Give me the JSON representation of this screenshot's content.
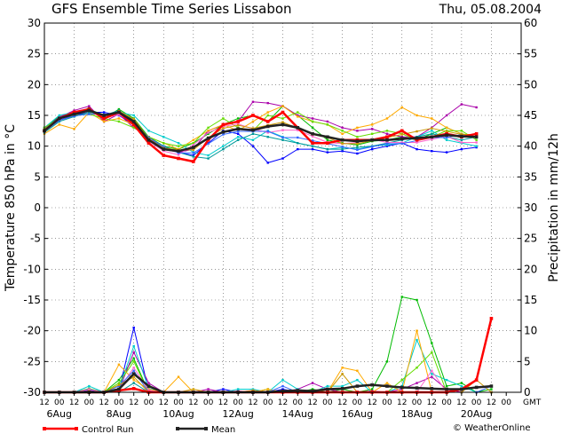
{
  "chart_data": {
    "type": "line",
    "title": "GFS Ensemble Time Series Lissabon",
    "date": "Thu, 05.08.2004",
    "ylabel_left": "Temperature 850 hPa in °C",
    "ylabel_right": "Precipitation in mm/12h",
    "ylim_left": [
      -30,
      30
    ],
    "ylim_right": [
      0,
      60
    ],
    "yticks_left": [
      "30",
      "25",
      "20",
      "15",
      "10",
      "5",
      "0",
      "-5",
      "-10",
      "-15",
      "-20",
      "-25",
      "-30"
    ],
    "yticks_right": [
      "60",
      "55",
      "50",
      "45",
      "40",
      "35",
      "30",
      "25",
      "20",
      "15",
      "10",
      "5",
      "0"
    ],
    "x_hour_labels": [
      "12",
      "00",
      "12",
      "00",
      "12",
      "00",
      "12",
      "00",
      "12",
      "00",
      "12",
      "00",
      "12",
      "00",
      "12",
      "00",
      "12",
      "00",
      "12",
      "00",
      "12",
      "00",
      "12",
      "00",
      "12",
      "00",
      "12",
      "00",
      "12",
      "00",
      "12",
      "00"
    ],
    "x_gmt_label": "GMT",
    "x_date_labels": [
      {
        "label": "6Aug",
        "step": 1
      },
      {
        "label": "8Aug",
        "step": 5
      },
      {
        "label": "10Aug",
        "step": 9
      },
      {
        "label": "12Aug",
        "step": 13
      },
      {
        "label": "14Aug",
        "step": 17
      },
      {
        "label": "16Aug",
        "step": 21
      },
      {
        "label": "18Aug",
        "step": 25
      },
      {
        "label": "20Aug",
        "step": 29
      }
    ],
    "grid": true,
    "legend": [
      {
        "name": "Control Run",
        "color": "#ff0000"
      },
      {
        "name": "Mean",
        "color": "#222222"
      }
    ],
    "credit": "© WeatherOnline",
    "temp_series": [
      {
        "name": "Control Run",
        "color": "#ff0000",
        "width": 2.5,
        "values": [
          12.5,
          14.5,
          15.5,
          16,
          14.5,
          15.5,
          13.5,
          10.5,
          8.5,
          8,
          7.5,
          11,
          13.5,
          14,
          15,
          14,
          15.5,
          13,
          10.5,
          10.5,
          11,
          11,
          11,
          11.5,
          12.5,
          11,
          11.5,
          12,
          11.5,
          12
        ]
      },
      {
        "name": "Mean",
        "color": "#222222",
        "width": 2.5,
        "values": [
          12.5,
          14.5,
          15.2,
          15.8,
          15,
          15.5,
          14,
          11,
          9.5,
          9.2,
          9.8,
          11.3,
          12.3,
          12.8,
          12.6,
          13.2,
          13.5,
          13,
          12,
          11.5,
          11,
          10.8,
          11,
          11,
          11.2,
          11.3,
          11.5,
          11.8,
          11.6,
          11.5
        ]
      },
      {
        "name": "",
        "color": "#00bb00",
        "width": 1,
        "values": [
          13,
          14.8,
          15.3,
          16.2,
          14.5,
          16,
          14.5,
          11.5,
          10,
          9.5,
          10.5,
          12,
          13.5,
          14.5,
          15,
          14,
          16.5,
          15,
          13,
          11,
          10.5,
          10.2,
          10.8,
          11,
          11.5,
          11,
          12,
          13,
          12,
          11.5
        ]
      },
      {
        "name": "",
        "color": "#0000ff",
        "width": 1,
        "values": [
          12.5,
          14.2,
          15,
          15.5,
          15.5,
          15,
          13.5,
          11,
          10,
          9,
          8.5,
          10.5,
          12.5,
          12,
          10,
          7.3,
          8,
          9.5,
          9.5,
          9,
          9.2,
          8.8,
          9.5,
          10,
          10.5,
          9.5,
          9.2,
          9,
          9.5,
          9.8
        ]
      },
      {
        "name": "",
        "color": "#aa00aa",
        "width": 1,
        "values": [
          12.8,
          14.7,
          15.8,
          16.5,
          14,
          15.2,
          13,
          11.5,
          9.5,
          9,
          9.5,
          12.5,
          13.5,
          14,
          17.2,
          17,
          16.5,
          15,
          14.5,
          14,
          13,
          12.5,
          12.8,
          12,
          11.5,
          11.5,
          13,
          15,
          16.8,
          16.3
        ]
      },
      {
        "name": "",
        "color": "#00cccc",
        "width": 1,
        "values": [
          13,
          15,
          15.5,
          16,
          15,
          15.5,
          15,
          12.5,
          11.5,
          10.5,
          9,
          8.5,
          10,
          11.5,
          11,
          12.5,
          11.5,
          10.5,
          10,
          9.5,
          9.8,
          9.5,
          10,
          10.2,
          10.5,
          11.5,
          12.5,
          11,
          10.5,
          10
        ]
      },
      {
        "name": "",
        "color": "#ffaa00",
        "width": 1,
        "values": [
          12,
          13.5,
          12.8,
          15.5,
          14,
          14.5,
          13.5,
          11.5,
          10.5,
          9.5,
          11,
          12.5,
          13.5,
          12.5,
          14,
          15.5,
          16.5,
          14.8,
          14,
          13.5,
          12,
          13,
          13.5,
          14.5,
          16.3,
          15,
          14.5,
          13,
          12,
          11.5
        ]
      },
      {
        "name": "",
        "color": "#66dd00",
        "width": 1,
        "values": [
          13,
          14.5,
          15,
          15.2,
          14.5,
          14,
          13,
          11.5,
          10.5,
          10,
          10.5,
          13,
          14.5,
          13,
          12.5,
          15,
          14.5,
          15.5,
          14,
          13.5,
          12.5,
          11.5,
          12,
          12.5,
          12,
          11,
          11.5,
          12.5,
          12.5,
          11
        ]
      },
      {
        "name": "",
        "color": "#009999",
        "width": 1,
        "values": [
          12.2,
          14,
          14.8,
          15.5,
          15,
          15.8,
          14.2,
          11,
          10,
          9,
          8.3,
          8,
          9.5,
          11,
          12,
          11.5,
          11,
          10.5,
          10,
          9.5,
          9.5,
          9.8,
          10,
          10.5,
          11,
          11.5,
          12,
          11.5,
          11,
          11.5
        ]
      },
      {
        "name": "",
        "color": "#ff66cc",
        "width": 1,
        "values": [
          12.6,
          14.4,
          15.1,
          15.9,
          14.6,
          15.1,
          13.8,
          10.8,
          9.2,
          8.6,
          10.2,
          12.2,
          13.2,
          13.6,
          12.8,
          12.2,
          12.6,
          12.6,
          11.6,
          10.6,
          10.4,
          10.6,
          11.1,
          10.6,
          10.6,
          10.6,
          11.1,
          11.6,
          10.6,
          10.6
        ]
      },
      {
        "name": "",
        "color": "#3366ff",
        "width": 1,
        "values": [
          12.4,
          14.2,
          14.9,
          15.2,
          15.2,
          15.4,
          13.9,
          11.4,
          9.9,
          8.9,
          8.9,
          10.4,
          11.9,
          12.4,
          12.4,
          12.4,
          11.4,
          11.4,
          10.9,
          10.4,
          9.9,
          9.4,
          9.9,
          10.4,
          10.4,
          10.9,
          11.4,
          11.4,
          11.9,
          11.4
        ]
      },
      {
        "name": "",
        "color": "#cc9900",
        "width": 1,
        "values": [
          12.7,
          14.6,
          15.4,
          16,
          14.4,
          15.7,
          14.4,
          11.2,
          9.7,
          9.4,
          9.4,
          11.4,
          12.9,
          13.4,
          12.9,
          13.4,
          13.9,
          12.9,
          11.9,
          11.4,
          10.4,
          10.4,
          10.9,
          11.4,
          11.9,
          12.4,
          12.9,
          12.4,
          11.9,
          11.9
        ]
      }
    ],
    "precip_series": [
      {
        "name": "Control Run",
        "color": "#ff0000",
        "width": 2.5,
        "values": [
          0,
          0,
          0,
          0,
          0,
          0.3,
          0.6,
          0,
          0,
          0,
          0,
          0,
          0,
          0,
          0,
          0,
          0,
          0,
          0,
          0,
          0,
          0,
          0,
          0,
          0,
          0,
          0,
          0,
          0.5,
          2,
          12
        ]
      },
      {
        "name": "Mean",
        "color": "#222222",
        "width": 2.5,
        "values": [
          0,
          0,
          0,
          0,
          0,
          0.5,
          3,
          1,
          0,
          0,
          0,
          0,
          0,
          0,
          0,
          0,
          0.2,
          0.3,
          0.2,
          0.5,
          0.6,
          1,
          1.2,
          1,
          0.8,
          0.7,
          0.6,
          0.5,
          0.5,
          0.8,
          1
        ]
      },
      {
        "name": "",
        "color": "#00bb00",
        "width": 1,
        "values": [
          0,
          0,
          0,
          0.6,
          0,
          2,
          5.5,
          0,
          0,
          0,
          0,
          0,
          0,
          0,
          0,
          0.5,
          0,
          0,
          0.5,
          0,
          0.5,
          0,
          0.5,
          5,
          15.5,
          15,
          8,
          1,
          1.5,
          0,
          0.5
        ]
      },
      {
        "name": "",
        "color": "#0000ff",
        "width": 1,
        "values": [
          0,
          0,
          0,
          0.3,
          0,
          0.2,
          10.5,
          0.2,
          0,
          0,
          0,
          0,
          0.5,
          0,
          0,
          0,
          0.5,
          0,
          0,
          0,
          0,
          0,
          0,
          0,
          0,
          0,
          0,
          0,
          0,
          0,
          0
        ]
      },
      {
        "name": "",
        "color": "#aa00aa",
        "width": 1,
        "values": [
          0,
          0,
          0,
          0,
          0,
          0.3,
          6.5,
          1.5,
          0,
          0,
          0,
          0.5,
          0,
          0.2,
          0,
          0,
          0,
          0.5,
          1.5,
          0.5,
          0,
          0,
          0.2,
          0,
          0.5,
          1.5,
          2.5,
          0.5,
          0,
          0,
          0
        ]
      },
      {
        "name": "",
        "color": "#00cccc",
        "width": 1,
        "values": [
          0,
          0,
          0,
          1,
          0,
          0.5,
          7.5,
          0.6,
          0,
          0,
          0,
          0,
          0,
          0.5,
          0.5,
          0,
          2,
          0.5,
          0,
          1,
          1,
          2,
          0,
          0,
          1,
          8.5,
          3,
          2,
          1,
          0,
          0
        ]
      },
      {
        "name": "",
        "color": "#ffaa00",
        "width": 1,
        "values": [
          0,
          0,
          0,
          0,
          0,
          4.5,
          2,
          0.5,
          0,
          2.5,
          0,
          0,
          0,
          0,
          0,
          0.5,
          0,
          0,
          0,
          0,
          4,
          3.5,
          0,
          1.5,
          0,
          10,
          0,
          0,
          0,
          0,
          0
        ]
      },
      {
        "name": "",
        "color": "#66dd00",
        "width": 1,
        "values": [
          0,
          0,
          0,
          0,
          0,
          1.5,
          5,
          0,
          0,
          0,
          0,
          0,
          0,
          0,
          0,
          0,
          0,
          0,
          0,
          0,
          0,
          0,
          0,
          0,
          2,
          4,
          6.5,
          0,
          0,
          0,
          0
        ]
      },
      {
        "name": "",
        "color": "#009999",
        "width": 1,
        "values": [
          0,
          0,
          0,
          0,
          0,
          0,
          1.5,
          0,
          0,
          0,
          0,
          0,
          0,
          0,
          0,
          0,
          0,
          0,
          0,
          0,
          0,
          0,
          0,
          0,
          0,
          0,
          0,
          0,
          0,
          0,
          0
        ]
      },
      {
        "name": "",
        "color": "#ff66cc",
        "width": 1,
        "values": [
          0,
          0,
          0,
          0.5,
          0,
          0.5,
          4,
          0.3,
          0,
          0,
          0,
          0,
          0,
          0,
          0.3,
          0,
          0,
          0,
          0,
          0,
          0,
          0,
          0,
          0,
          0,
          0,
          3.5,
          0,
          0,
          0,
          0
        ]
      },
      {
        "name": "",
        "color": "#3366ff",
        "width": 1,
        "values": [
          0,
          0,
          0,
          0,
          0,
          1,
          3.5,
          0,
          0,
          0,
          0,
          0,
          0,
          0,
          0,
          0,
          1,
          0,
          0,
          0,
          0,
          0,
          0,
          0,
          0,
          0,
          0,
          0,
          0,
          0,
          1
        ]
      },
      {
        "name": "",
        "color": "#cc9900",
        "width": 1,
        "values": [
          0,
          0,
          0,
          0.2,
          0,
          1.2,
          2.5,
          0,
          0,
          0,
          0.5,
          0,
          0,
          0,
          0.3,
          0,
          0,
          0,
          0,
          0,
          3,
          0,
          0,
          0,
          0,
          0,
          0,
          0,
          0,
          2,
          0
        ]
      }
    ]
  }
}
